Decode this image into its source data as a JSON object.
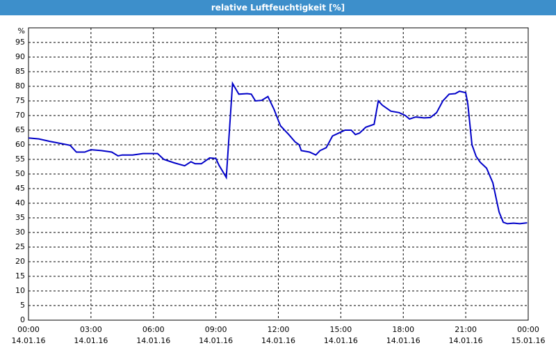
{
  "chart_data": {
    "type": "line",
    "title": "relative Luftfeuchtigkeit [%]",
    "y_label": "%",
    "x": [
      0,
      0.5,
      1,
      1.5,
      2,
      2.3,
      2.7,
      3,
      3.5,
      4,
      4.3,
      4.5,
      5,
      5.5,
      6,
      6.2,
      6.5,
      7,
      7.5,
      7.8,
      8,
      8.3,
      8.7,
      9,
      9.15,
      9.5,
      9.8,
      10.1,
      10.5,
      10.7,
      10.9,
      11.2,
      11.5,
      11.8,
      12.1,
      12.5,
      12.8,
      13,
      13.1,
      13.5,
      13.8,
      14,
      14.3,
      14.6,
      14.9,
      15.2,
      15.5,
      15.7,
      15.9,
      16.2,
      16.6,
      16.8,
      17,
      17.4,
      17.8,
      18.1,
      18.3,
      18.6,
      19,
      19.3,
      19.6,
      19.9,
      20.2,
      20.5,
      20.7,
      21,
      21.1,
      21.3,
      21.5,
      21.7,
      22,
      22.3,
      22.6,
      22.8,
      23,
      23.3,
      23.6,
      23.95
    ],
    "series": [
      {
        "name": "relative Luftfeuchtigkeit",
        "color": "#0000c8",
        "values": [
          62.3,
          62,
          61.2,
          60.5,
          59.8,
          57.5,
          57.5,
          58.3,
          58,
          57.5,
          56.2,
          56.5,
          56.5,
          57,
          57,
          57,
          55,
          53.8,
          52.8,
          54.2,
          53.5,
          53.5,
          55.5,
          55.3,
          53,
          48.8,
          81,
          77.3,
          77.5,
          77.3,
          75,
          75.2,
          76.5,
          72,
          66.5,
          63.5,
          61,
          60,
          58,
          57.5,
          56.5,
          58,
          59,
          63,
          64,
          65,
          65,
          63.5,
          64,
          66,
          67,
          75,
          73.5,
          71.5,
          71,
          70,
          68.8,
          69.5,
          69.2,
          69.3,
          71,
          75,
          77.3,
          77.5,
          78.3,
          77.8,
          74,
          60,
          56,
          54,
          52,
          47,
          37,
          33.5,
          33,
          33.2,
          33,
          33.3
        ]
      }
    ],
    "xlim": [
      0,
      24
    ],
    "xticks": [
      {
        "value": 0,
        "label": "00:00"
      },
      {
        "value": 3,
        "label": "03:00"
      },
      {
        "value": 6,
        "label": "06:00"
      },
      {
        "value": 9,
        "label": "09:00"
      },
      {
        "value": 12,
        "label": "12:00"
      },
      {
        "value": 15,
        "label": "15:00"
      },
      {
        "value": 18,
        "label": "18:00"
      },
      {
        "value": 21,
        "label": "21:00"
      },
      {
        "value": 24,
        "label": "00:00"
      }
    ],
    "xtick_dates": [
      "14.01.16",
      "14.01.16",
      "14.01.16",
      "14.01.16",
      "14.01.16",
      "14.01.16",
      "14.01.16",
      "14.01.16",
      "15.01.16"
    ],
    "ylim": [
      0,
      100
    ],
    "yticks": [
      0,
      5,
      10,
      15,
      20,
      25,
      30,
      35,
      40,
      45,
      50,
      55,
      60,
      65,
      70,
      75,
      80,
      85,
      90,
      95
    ],
    "grid": true
  }
}
